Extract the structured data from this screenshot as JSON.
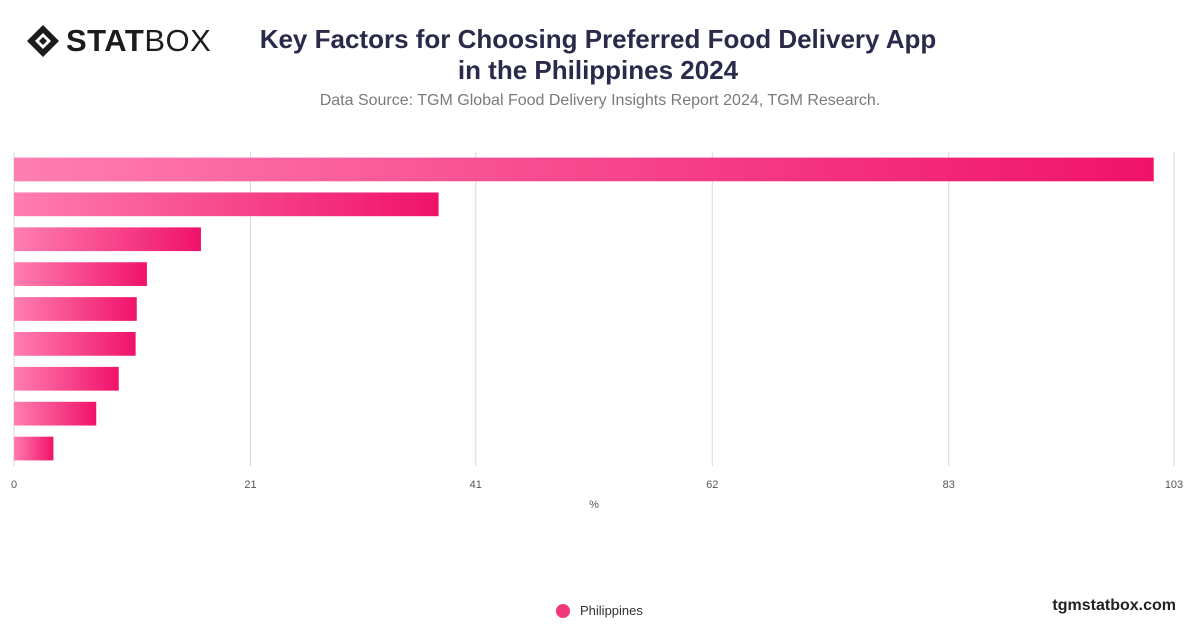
{
  "brand": {
    "logo_bold": "STAT",
    "logo_light": "BOX",
    "site": "tgmstatbox.com"
  },
  "header": {
    "title_line1": "Key Factors for Choosing Preferred Food Delivery App",
    "title_line2": "in the Philippines  2024",
    "subtitle": "Data Source: TGM Global Food Delivery Insights Report 2024, TGM Research."
  },
  "colors": {
    "bar_start": "#ff7eb0",
    "bar_end": "#f0126a",
    "grid": "#d9d9d9"
  },
  "chart_data": {
    "type": "bar",
    "orientation": "horizontal",
    "title": "Key Factors for Choosing Preferred Food Delivery App in the Philippines  2024",
    "xlabel": "%",
    "ylabel": "",
    "xlim": [
      0,
      103
    ],
    "xticks": [
      "0",
      "21",
      "41",
      "62",
      "83",
      "103"
    ],
    "grid": true,
    "legend_position": "bottom-center",
    "series": [
      {
        "name": "Philippines",
        "values": [
          101.2,
          37.7,
          16.6,
          11.8,
          10.9,
          10.8,
          9.3,
          7.3,
          3.5
        ]
      }
    ]
  }
}
